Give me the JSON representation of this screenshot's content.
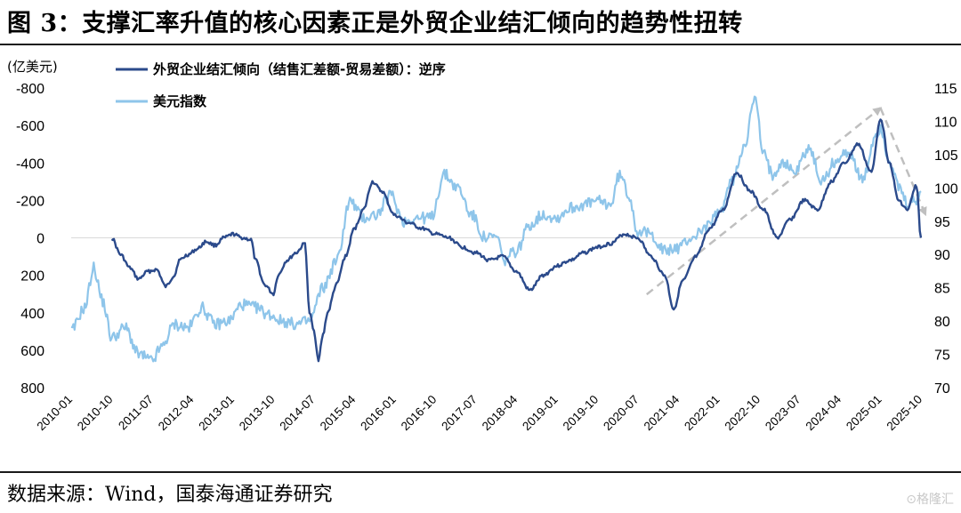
{
  "title": "图 3：支撑汇率升值的核心因素正是外贸企业结汇倾向的趋势性扭转",
  "source": "数据来源：Wind，国泰海通证券研究",
  "watermark": "⊙格隆汇",
  "colors": {
    "primary": "#2b4a8b",
    "secondary": "#8ec5ea",
    "trend": "#bfbfbf"
  },
  "chart_data": {
    "type": "line",
    "x_ticks": [
      "2010-01",
      "2010-10",
      "2011-07",
      "2012-04",
      "2013-01",
      "2013-10",
      "2014-07",
      "2015-04",
      "2016-01",
      "2016-10",
      "2017-07",
      "2018-04",
      "2019-01",
      "2019-10",
      "2020-07",
      "2021-04",
      "2022-01",
      "2022-10",
      "2023-07",
      "2024-04",
      "2025-01",
      "2025-10"
    ],
    "y_left": {
      "unit": "(亿美元)",
      "ticks": [
        "-800",
        "-600",
        "-400",
        "-200",
        "0",
        "200",
        "400",
        "600",
        "800"
      ],
      "range": [
        800,
        -800
      ],
      "inverted": true
    },
    "y_right": {
      "ticks": [
        "115",
        "110",
        "105",
        "100",
        "95",
        "90",
        "85",
        "80",
        "75",
        "70"
      ],
      "range": [
        70,
        115
      ]
    },
    "grid": false,
    "legend_position": "top-left",
    "trend_arrows": [
      {
        "from": [
          "2020-09",
          84
        ],
        "to": [
          "2025-01",
          112
        ]
      },
      {
        "from": [
          "2025-01",
          112
        ],
        "to": [
          "2025-11",
          96
        ]
      }
    ],
    "series": [
      {
        "name": "外贸企业结汇倾向（结售汇差额-贸易差额）：逆序",
        "axis": "left",
        "points": [
          [
            "2010-10",
            0
          ],
          [
            "2010-12",
            90
          ],
          [
            "2011-02",
            160
          ],
          [
            "2011-04",
            220
          ],
          [
            "2011-06",
            180
          ],
          [
            "2011-08",
            170
          ],
          [
            "2011-10",
            260
          ],
          [
            "2011-12",
            200
          ],
          [
            "2012-01",
            120
          ],
          [
            "2012-03",
            90
          ],
          [
            "2012-05",
            60
          ],
          [
            "2012-07",
            20
          ],
          [
            "2012-09",
            40
          ],
          [
            "2012-11",
            0
          ],
          [
            "2013-01",
            -20
          ],
          [
            "2013-03",
            0
          ],
          [
            "2013-05",
            10
          ],
          [
            "2013-06",
            120
          ],
          [
            "2013-08",
            250
          ],
          [
            "2013-10",
            300
          ],
          [
            "2013-11",
            200
          ],
          [
            "2014-01",
            120
          ],
          [
            "2014-03",
            80
          ],
          [
            "2014-05",
            30
          ],
          [
            "2014-06",
            400
          ],
          [
            "2014-07",
            500
          ],
          [
            "2014-08",
            650
          ],
          [
            "2014-09",
            520
          ],
          [
            "2014-10",
            400
          ],
          [
            "2014-12",
            250
          ],
          [
            "2015-02",
            100
          ],
          [
            "2015-04",
            -50
          ],
          [
            "2015-06",
            -150
          ],
          [
            "2015-08",
            -300
          ],
          [
            "2015-10",
            -250
          ],
          [
            "2016-01",
            -120
          ],
          [
            "2016-04",
            -80
          ],
          [
            "2016-07",
            -50
          ],
          [
            "2016-10",
            -20
          ],
          [
            "2017-01",
            0
          ],
          [
            "2017-04",
            50
          ],
          [
            "2017-07",
            80
          ],
          [
            "2017-10",
            120
          ],
          [
            "2018-01",
            100
          ],
          [
            "2018-04",
            180
          ],
          [
            "2018-07",
            280
          ],
          [
            "2018-10",
            200
          ],
          [
            "2019-01",
            150
          ],
          [
            "2019-04",
            120
          ],
          [
            "2019-07",
            80
          ],
          [
            "2019-10",
            50
          ],
          [
            "2020-01",
            30
          ],
          [
            "2020-04",
            -20
          ],
          [
            "2020-07",
            0
          ],
          [
            "2020-10",
            100
          ],
          [
            "2021-01",
            200
          ],
          [
            "2021-03",
            380
          ],
          [
            "2021-05",
            230
          ],
          [
            "2021-08",
            100
          ],
          [
            "2021-11",
            -50
          ],
          [
            "2022-02",
            -150
          ],
          [
            "2022-05",
            -350
          ],
          [
            "2022-08",
            -250
          ],
          [
            "2022-11",
            -150
          ],
          [
            "2023-02",
            0
          ],
          [
            "2023-05",
            -100
          ],
          [
            "2023-08",
            -200
          ],
          [
            "2023-11",
            -150
          ],
          [
            "2024-02",
            -300
          ],
          [
            "2024-05",
            -400
          ],
          [
            "2024-08",
            -500
          ],
          [
            "2024-11",
            -350
          ],
          [
            "2025-01",
            -640
          ],
          [
            "2025-03",
            -400
          ],
          [
            "2025-05",
            -200
          ],
          [
            "2025-07",
            -150
          ],
          [
            "2025-09",
            -280
          ],
          [
            "2025-10",
            0
          ]
        ]
      },
      {
        "name": "美元指数",
        "axis": "right",
        "points": [
          [
            "2010-01",
            78.5
          ],
          [
            "2010-04",
            82
          ],
          [
            "2010-06",
            88
          ],
          [
            "2010-08",
            83
          ],
          [
            "2010-10",
            77.5
          ],
          [
            "2011-01",
            79
          ],
          [
            "2011-04",
            75
          ],
          [
            "2011-07",
            74
          ],
          [
            "2011-09",
            76
          ],
          [
            "2011-12",
            79.5
          ],
          [
            "2012-03",
            79
          ],
          [
            "2012-06",
            82
          ],
          [
            "2012-09",
            79.5
          ],
          [
            "2012-12",
            80
          ],
          [
            "2013-03",
            82.5
          ],
          [
            "2013-06",
            82
          ],
          [
            "2013-09",
            81
          ],
          [
            "2013-12",
            80
          ],
          [
            "2014-03",
            79.5
          ],
          [
            "2014-06",
            80
          ],
          [
            "2014-09",
            85
          ],
          [
            "2014-12",
            89
          ],
          [
            "2015-03",
            98
          ],
          [
            "2015-06",
            95.5
          ],
          [
            "2015-09",
            96
          ],
          [
            "2015-12",
            99
          ],
          [
            "2016-03",
            95
          ],
          [
            "2016-06",
            95.5
          ],
          [
            "2016-09",
            95.5
          ],
          [
            "2016-12",
            102
          ],
          [
            "2017-03",
            100
          ],
          [
            "2017-06",
            96
          ],
          [
            "2017-09",
            92.5
          ],
          [
            "2017-12",
            92.5
          ],
          [
            "2018-01",
            89
          ],
          [
            "2018-04",
            90.5
          ],
          [
            "2018-07",
            94.5
          ],
          [
            "2018-10",
            96
          ],
          [
            "2019-01",
            95.5
          ],
          [
            "2019-04",
            97
          ],
          [
            "2019-07",
            97.5
          ],
          [
            "2019-10",
            98
          ],
          [
            "2020-01",
            97.5
          ],
          [
            "2020-03",
            102
          ],
          [
            "2020-05",
            99
          ],
          [
            "2020-07",
            93.5
          ],
          [
            "2020-10",
            93
          ],
          [
            "2021-01",
            90.5
          ],
          [
            "2021-04",
            91
          ],
          [
            "2021-07",
            92.5
          ],
          [
            "2021-10",
            94
          ],
          [
            "2022-01",
            96
          ],
          [
            "2022-04",
            101
          ],
          [
            "2022-07",
            107
          ],
          [
            "2022-09",
            113.5
          ],
          [
            "2022-11",
            105
          ],
          [
            "2023-01",
            102
          ],
          [
            "2023-03",
            104
          ],
          [
            "2023-06",
            102.5
          ],
          [
            "2023-09",
            106
          ],
          [
            "2023-12",
            101
          ],
          [
            "2024-03",
            104
          ],
          [
            "2024-06",
            105.5
          ],
          [
            "2024-09",
            101
          ],
          [
            "2024-12",
            108
          ],
          [
            "2025-01",
            109
          ],
          [
            "2025-03",
            104
          ],
          [
            "2025-05",
            100
          ],
          [
            "2025-07",
            97.5
          ],
          [
            "2025-09",
            98
          ],
          [
            "2025-10",
            99.5
          ]
        ]
      }
    ]
  }
}
